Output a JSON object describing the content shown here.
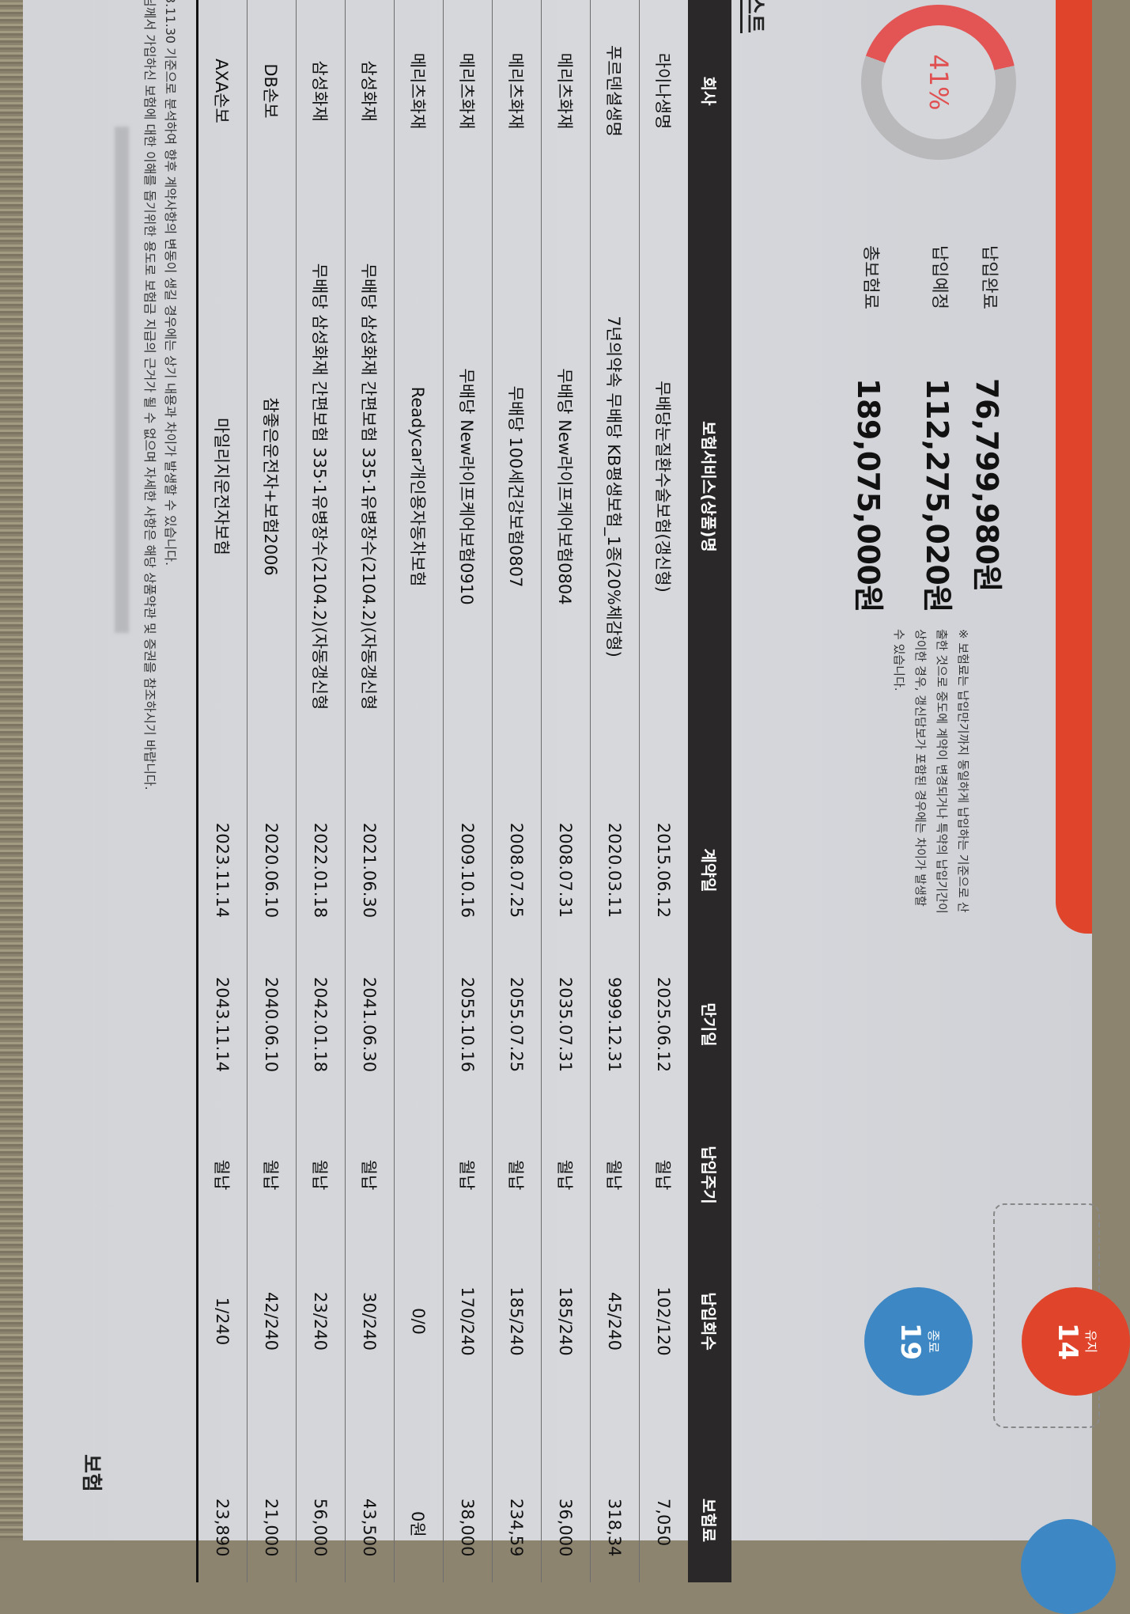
{
  "section_title": "스트",
  "summary": {
    "progress_percent": 41,
    "progress_label": "41%",
    "rows": [
      {
        "label": "납입완료",
        "value": "76,799,980원"
      },
      {
        "label": "납입예정",
        "value": "112,275,020원"
      },
      {
        "label": "총보험료",
        "value": "189,075,000원"
      }
    ],
    "note": "※ 보험료는 납입만기까지 동일하게 납입하는 기준으로 산출한 것으로 중도에 계약이 변경되거나 특약의 납입기간이 상이한 경우, 갱신담보가 포함된 경우에는 차이가 발생할 수 있습니다."
  },
  "status_counts": [
    {
      "label": "유지",
      "value": "14",
      "color": "#e0452c"
    },
    {
      "label": "종료",
      "value": "19",
      "color": "#3d88c4"
    }
  ],
  "table": {
    "headers": [
      "회사",
      "보험서비스(상품)명",
      "계약일",
      "만기일",
      "납입주기",
      "납입회수",
      "보험료"
    ],
    "rows": [
      [
        "라이나생명",
        "무배당눈질환수술보험(갱신형)",
        "2015.06.12",
        "2025.06.12",
        "월납",
        "102/120",
        "7,050"
      ],
      [
        "푸르덴셜생명",
        "7년의약속 무배당 KB평생보험_1종(20%체감형)",
        "2020.03.11",
        "9999.12.31",
        "월납",
        "45/240",
        "318,34"
      ],
      [
        "메리츠화재",
        "무배당 New라이프케어보험0804",
        "2008.07.31",
        "2035.07.31",
        "월납",
        "185/240",
        "36,000"
      ],
      [
        "메리츠화재",
        "무배당 100세건강보험0807",
        "2008.07.25",
        "2055.07.25",
        "월납",
        "185/240",
        "234,59"
      ],
      [
        "메리츠화재",
        "무배당 New라이프케어보험0910",
        "2009.10.16",
        "2055.10.16",
        "월납",
        "170/240",
        "38,000"
      ],
      [
        "메리츠화재",
        "Readycar개인용자동차보험",
        "",
        "",
        "",
        "0/0",
        "0원"
      ],
      [
        "삼성화재",
        "무배당 삼성화재 간편보험 335·1유병장수(2104.2)(자동갱신형",
        "2021.06.30",
        "2041.06.30",
        "월납",
        "30/240",
        "43,500"
      ],
      [
        "삼성화재",
        "무배당 삼성화재 간편보험 335·1유병장수(2104.2)(자동갱신형",
        "2022.01.18",
        "2042.01.18",
        "월납",
        "23/240",
        "56,000"
      ],
      [
        "DB손보",
        "참좋은운전자+보험2006",
        "2020.06.10",
        "2040.06.10",
        "월납",
        "42/240",
        "21,000"
      ],
      [
        "AXA손보",
        "마일리지운전자보험",
        "2023.11.14",
        "2043.11.14",
        "월납",
        "1/240",
        "23,890"
      ]
    ]
  },
  "footnotes": [
    "3.11.30 기준으로 분석하여 향후 계약사항의 변동이 생길 경우에는 상기 내용과 차이가 발생할 수 있습니다.",
    "님께서 가입하신 보험에 대한 이해를 돕기위한 용도로 보험금 지급의 근거가 될 수 없으며 자세한 사항은 해당 상품약관 및 증권을 참조하시기 바랍니다."
  ],
  "bottom_heading": "보험"
}
